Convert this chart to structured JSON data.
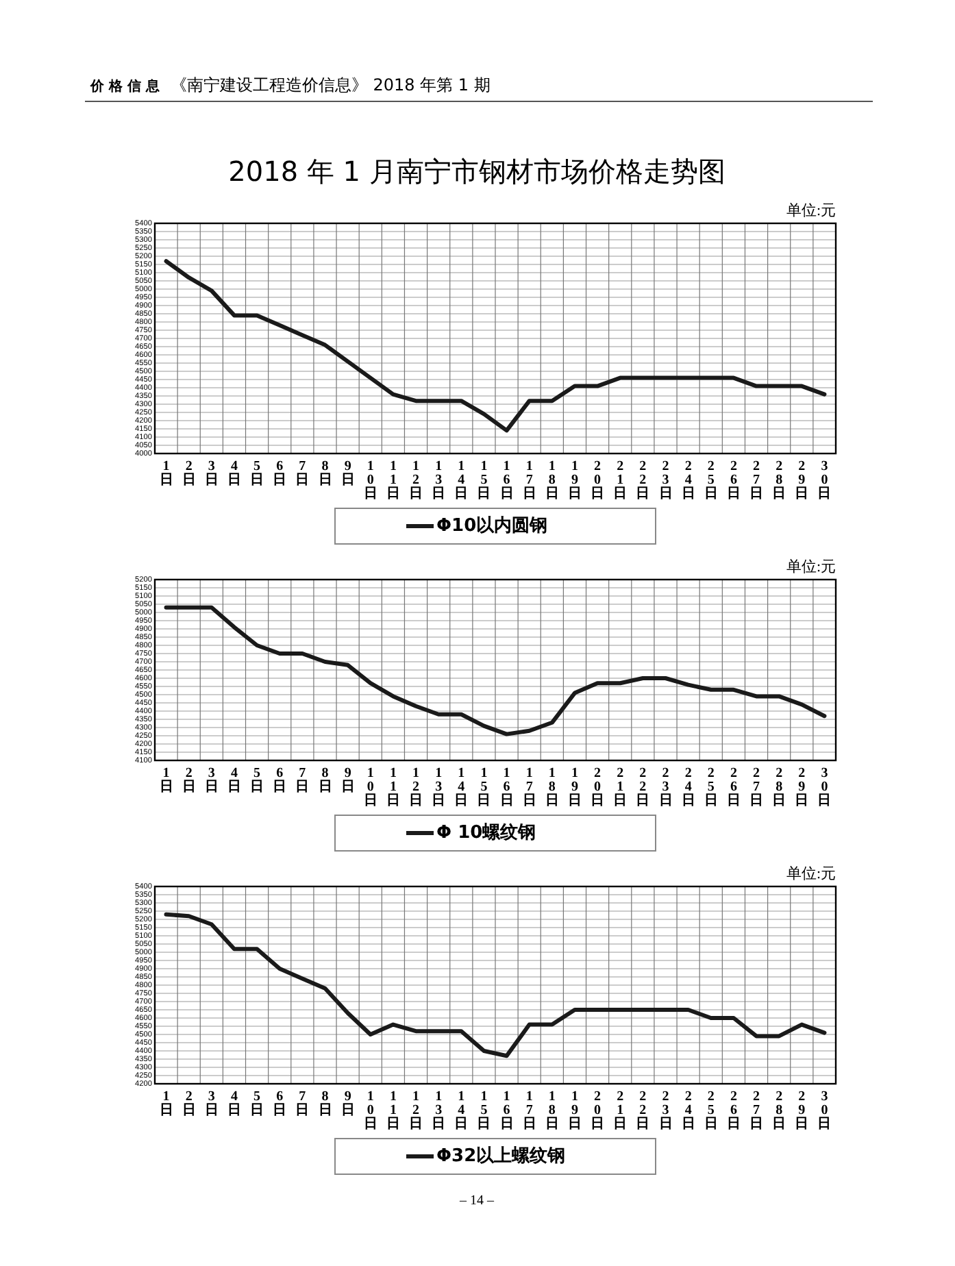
{
  "chart_data": [
    {
      "type": "line",
      "title": "2018 年 1 月南宁市钢材市场价格走势图",
      "annotations": [
        "价 格 信 息",
        "《南宁建设工程造价信息》 2018 年第 1 期",
        "单位:元"
      ],
      "categories": [
        "1日",
        "2日",
        "3日",
        "4日",
        "5日",
        "6日",
        "7日",
        "8日",
        "9日",
        "10日",
        "11日",
        "12日",
        "13日",
        "14日",
        "15日",
        "16日",
        "17日",
        "18日",
        "19日",
        "20日",
        "21日",
        "22日",
        "23日",
        "24日",
        "25日",
        "26日",
        "27日",
        "28日",
        "29日",
        "30日"
      ],
      "series": [
        {
          "name": "Φ10以内圆钢",
          "color": "#1a1a1a",
          "values": [
            5170,
            5070,
            4990,
            4840,
            4840,
            4780,
            4720,
            4660,
            4560,
            4460,
            4360,
            4320,
            4320,
            4320,
            4240,
            4140,
            4320,
            4320,
            4410,
            4410,
            4460,
            4460,
            4460,
            4460,
            4460,
            4460,
            4410,
            4410,
            4410,
            4360
          ]
        }
      ],
      "ylim": [
        4000,
        5400
      ],
      "yticks": [
        4000,
        4050,
        4100,
        4150,
        4200,
        4250,
        4300,
        4350,
        4400,
        4450,
        4500,
        4550,
        4600,
        4650,
        4700,
        4750,
        4800,
        4850,
        4900,
        4950,
        5000,
        5050,
        5100,
        5150,
        5200,
        5250,
        5300,
        5350,
        5400
      ],
      "grid": true,
      "legend": "bottom"
    },
    {
      "type": "line",
      "annotations": [
        "单位:元"
      ],
      "categories": [
        "1日",
        "2日",
        "3日",
        "4日",
        "5日",
        "6日",
        "7日",
        "8日",
        "9日",
        "10日",
        "11日",
        "12日",
        "13日",
        "14日",
        "15日",
        "16日",
        "17日",
        "18日",
        "19日",
        "20日",
        "21日",
        "22日",
        "23日",
        "24日",
        "25日",
        "26日",
        "27日",
        "28日",
        "29日",
        "30日"
      ],
      "series": [
        {
          "name": "Φ 10螺纹钢",
          "color": "#1a1a1a",
          "values": [
            5030,
            5030,
            5030,
            4910,
            4800,
            4750,
            4750,
            4700,
            4680,
            4570,
            4490,
            4430,
            4380,
            4380,
            4310,
            4260,
            4280,
            4330,
            4510,
            4570,
            4570,
            4600,
            4600,
            4560,
            4530,
            4530,
            4490,
            4490,
            4440,
            4370
          ]
        }
      ],
      "ylim": [
        4100,
        5200
      ],
      "yticks": [
        4100,
        4150,
        4200,
        4250,
        4300,
        4350,
        4400,
        4450,
        4500,
        4550,
        4600,
        4650,
        4700,
        4750,
        4800,
        4850,
        4900,
        4950,
        5000,
        5050,
        5100,
        5150,
        5200
      ],
      "grid": true,
      "legend": "bottom"
    },
    {
      "type": "line",
      "annotations": [
        "单位:元",
        "– 14 –"
      ],
      "categories": [
        "1日",
        "2日",
        "3日",
        "4日",
        "5日",
        "6日",
        "7日",
        "8日",
        "9日",
        "10日",
        "11日",
        "12日",
        "13日",
        "14日",
        "15日",
        "16日",
        "17日",
        "18日",
        "19日",
        "20日",
        "21日",
        "22日",
        "23日",
        "24日",
        "25日",
        "26日",
        "27日",
        "28日",
        "29日",
        "30日"
      ],
      "series": [
        {
          "name": "Φ32以上螺纹钢",
          "color": "#1a1a1a",
          "values": [
            5230,
            5220,
            5170,
            5020,
            5020,
            4900,
            4840,
            4780,
            4630,
            4500,
            4560,
            4520,
            4520,
            4520,
            4400,
            4370,
            4560,
            4560,
            4650,
            4650,
            4650,
            4650,
            4650,
            4650,
            4600,
            4600,
            4490,
            4490,
            4560,
            4510
          ]
        }
      ],
      "ylim": [
        4200,
        5400
      ],
      "yticks": [
        4200,
        4250,
        4300,
        4350,
        4400,
        4450,
        4500,
        4550,
        4600,
        4650,
        4700,
        4750,
        4800,
        4850,
        4900,
        4950,
        5000,
        5050,
        5100,
        5150,
        5200,
        5250,
        5300,
        5350,
        5400
      ],
      "grid": true,
      "legend": "bottom"
    }
  ]
}
